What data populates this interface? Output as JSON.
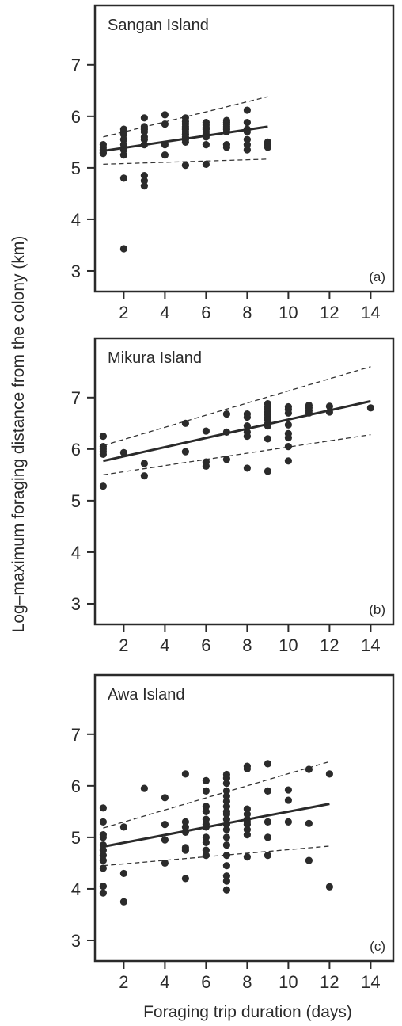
{
  "figure": {
    "ylabel": "Log–maximum foraging distance from the colony (km)",
    "xlabel": "Foraging trip duration (days)"
  },
  "chart_data": [
    {
      "type": "scatter",
      "title": "Sangan Island",
      "panel_label": "(a)",
      "xlim": [
        0.6,
        15.1
      ],
      "ylim": [
        2.6,
        8.15
      ],
      "xticks": [
        2,
        4,
        6,
        8,
        10,
        12,
        14
      ],
      "yticks": [
        3,
        4,
        5,
        6,
        7
      ],
      "points": [
        [
          1,
          5.45
        ],
        [
          1,
          5.4
        ],
        [
          1,
          5.35
        ],
        [
          1,
          5.3
        ],
        [
          1,
          5.28
        ],
        [
          2,
          5.75
        ],
        [
          2,
          5.7
        ],
        [
          2,
          5.65
        ],
        [
          2,
          5.55
        ],
        [
          2,
          5.45
        ],
        [
          2,
          5.35
        ],
        [
          2,
          5.25
        ],
        [
          2,
          4.8
        ],
        [
          2,
          3.43
        ],
        [
          3,
          5.97
        ],
        [
          3,
          5.8
        ],
        [
          3,
          5.75
        ],
        [
          3,
          5.7
        ],
        [
          3,
          5.6
        ],
        [
          3,
          5.55
        ],
        [
          3,
          5.45
        ],
        [
          3,
          4.85
        ],
        [
          3,
          4.75
        ],
        [
          3,
          4.65
        ],
        [
          4,
          6.03
        ],
        [
          4,
          5.85
        ],
        [
          4,
          5.45
        ],
        [
          4,
          5.25
        ],
        [
          5,
          5.97
        ],
        [
          5,
          5.9
        ],
        [
          5,
          5.85
        ],
        [
          5,
          5.8
        ],
        [
          5,
          5.75
        ],
        [
          5,
          5.7
        ],
        [
          5,
          5.65
        ],
        [
          5,
          5.6
        ],
        [
          5,
          5.55
        ],
        [
          5,
          5.5
        ],
        [
          5,
          5.05
        ],
        [
          6,
          5.88
        ],
        [
          6,
          5.83
        ],
        [
          6,
          5.78
        ],
        [
          6,
          5.75
        ],
        [
          6,
          5.7
        ],
        [
          6,
          5.65
        ],
        [
          6,
          5.6
        ],
        [
          6,
          5.45
        ],
        [
          6,
          5.07
        ],
        [
          7,
          5.92
        ],
        [
          7,
          5.88
        ],
        [
          7,
          5.84
        ],
        [
          7,
          5.8
        ],
        [
          7,
          5.75
        ],
        [
          7,
          5.7
        ],
        [
          7,
          5.45
        ],
        [
          7,
          5.4
        ],
        [
          8,
          6.12
        ],
        [
          8,
          5.88
        ],
        [
          8,
          5.75
        ],
        [
          8,
          5.7
        ],
        [
          8,
          5.55
        ],
        [
          8,
          5.45
        ],
        [
          8,
          5.35
        ],
        [
          9,
          5.5
        ],
        [
          9,
          5.45
        ],
        [
          9,
          5.4
        ]
      ],
      "fit_line": {
        "x": [
          1,
          9
        ],
        "y": [
          5.33,
          5.8
        ]
      },
      "confidence_upper": {
        "x": [
          1,
          9
        ],
        "y": [
          5.6,
          6.38
        ]
      },
      "confidence_lower": {
        "x": [
          1,
          9
        ],
        "y": [
          5.07,
          5.17
        ]
      }
    },
    {
      "type": "scatter",
      "title": "Mikura Island",
      "panel_label": "(b)",
      "xlim": [
        0.6,
        15.1
      ],
      "ylim": [
        2.6,
        8.15
      ],
      "xticks": [
        2,
        4,
        6,
        8,
        10,
        12,
        14
      ],
      "yticks": [
        3,
        4,
        5,
        6,
        7
      ],
      "points": [
        [
          1,
          6.25
        ],
        [
          1,
          6.05
        ],
        [
          1,
          6.0
        ],
        [
          1,
          5.95
        ],
        [
          1,
          5.9
        ],
        [
          1,
          5.28
        ],
        [
          2,
          5.93
        ],
        [
          3,
          5.72
        ],
        [
          3,
          5.48
        ],
        [
          5,
          6.5
        ],
        [
          5,
          5.95
        ],
        [
          6,
          6.35
        ],
        [
          6,
          5.75
        ],
        [
          6,
          5.67
        ],
        [
          7,
          6.68
        ],
        [
          7,
          6.33
        ],
        [
          7,
          5.8
        ],
        [
          8,
          6.68
        ],
        [
          8,
          6.62
        ],
        [
          8,
          6.45
        ],
        [
          8,
          6.33
        ],
        [
          8,
          6.25
        ],
        [
          8,
          5.63
        ],
        [
          9,
          6.88
        ],
        [
          9,
          6.82
        ],
        [
          9,
          6.77
        ],
        [
          9,
          6.72
        ],
        [
          9,
          6.67
        ],
        [
          9,
          6.62
        ],
        [
          9,
          6.57
        ],
        [
          9,
          6.5
        ],
        [
          9,
          6.45
        ],
        [
          9,
          6.2
        ],
        [
          9,
          5.57
        ],
        [
          10,
          6.82
        ],
        [
          10,
          6.77
        ],
        [
          10,
          6.7
        ],
        [
          10,
          6.47
        ],
        [
          10,
          6.3
        ],
        [
          10,
          6.22
        ],
        [
          10,
          6.05
        ],
        [
          10,
          5.77
        ],
        [
          11,
          6.85
        ],
        [
          11,
          6.8
        ],
        [
          11,
          6.75
        ],
        [
          11,
          6.7
        ],
        [
          12,
          6.83
        ],
        [
          12,
          6.72
        ],
        [
          14,
          6.8
        ]
      ],
      "fit_line": {
        "x": [
          1,
          14
        ],
        "y": [
          5.77,
          6.93
        ]
      },
      "confidence_upper": {
        "x": [
          1,
          14
        ],
        "y": [
          6.07,
          7.6
        ]
      },
      "confidence_lower": {
        "x": [
          1,
          14
        ],
        "y": [
          5.5,
          6.28
        ]
      }
    },
    {
      "type": "scatter",
      "title": "Awa Island",
      "panel_label": "(c)",
      "xlim": [
        0.6,
        15.1
      ],
      "ylim": [
        2.6,
        8.15
      ],
      "xticks": [
        2,
        4,
        6,
        8,
        10,
        12,
        14
      ],
      "yticks": [
        3,
        4,
        5,
        6,
        7
      ],
      "points": [
        [
          1,
          5.57
        ],
        [
          1,
          5.3
        ],
        [
          1,
          5.05
        ],
        [
          1,
          5.0
        ],
        [
          1,
          4.85
        ],
        [
          1,
          4.75
        ],
        [
          1,
          4.65
        ],
        [
          1,
          4.55
        ],
        [
          1,
          4.4
        ],
        [
          1,
          4.05
        ],
        [
          1,
          3.92
        ],
        [
          2,
          5.2
        ],
        [
          2,
          4.3
        ],
        [
          2,
          3.75
        ],
        [
          3,
          5.95
        ],
        [
          4,
          5.77
        ],
        [
          4,
          5.25
        ],
        [
          4,
          4.95
        ],
        [
          4,
          4.5
        ],
        [
          5,
          6.23
        ],
        [
          5,
          5.3
        ],
        [
          5,
          5.2
        ],
        [
          5,
          5.1
        ],
        [
          5,
          4.8
        ],
        [
          5,
          4.75
        ],
        [
          5,
          4.2
        ],
        [
          6,
          6.1
        ],
        [
          6,
          5.9
        ],
        [
          6,
          5.6
        ],
        [
          6,
          5.5
        ],
        [
          6,
          5.35
        ],
        [
          6,
          5.25
        ],
        [
          6,
          5.2
        ],
        [
          6,
          5.0
        ],
        [
          6,
          4.9
        ],
        [
          6,
          4.75
        ],
        [
          6,
          4.65
        ],
        [
          7,
          6.22
        ],
        [
          7,
          6.15
        ],
        [
          7,
          6.05
        ],
        [
          7,
          5.9
        ],
        [
          7,
          5.8
        ],
        [
          7,
          5.7
        ],
        [
          7,
          5.6
        ],
        [
          7,
          5.5
        ],
        [
          7,
          5.45
        ],
        [
          7,
          5.35
        ],
        [
          7,
          5.25
        ],
        [
          7,
          5.15
        ],
        [
          7,
          5.0
        ],
        [
          7,
          4.85
        ],
        [
          7,
          4.65
        ],
        [
          7,
          4.45
        ],
        [
          7,
          4.25
        ],
        [
          7,
          4.15
        ],
        [
          7,
          3.98
        ],
        [
          8,
          6.38
        ],
        [
          8,
          6.33
        ],
        [
          8,
          5.55
        ],
        [
          8,
          5.45
        ],
        [
          8,
          5.35
        ],
        [
          8,
          5.3
        ],
        [
          8,
          5.25
        ],
        [
          8,
          5.15
        ],
        [
          8,
          5.05
        ],
        [
          8,
          4.62
        ],
        [
          9,
          6.43
        ],
        [
          9,
          5.9
        ],
        [
          9,
          5.3
        ],
        [
          9,
          5.0
        ],
        [
          9,
          4.65
        ],
        [
          10,
          5.92
        ],
        [
          10,
          5.72
        ],
        [
          10,
          5.3
        ],
        [
          11,
          6.32
        ],
        [
          11,
          5.27
        ],
        [
          11,
          4.55
        ],
        [
          12,
          6.23
        ],
        [
          12,
          4.04
        ]
      ],
      "fit_line": {
        "x": [
          1,
          12
        ],
        "y": [
          4.82,
          5.65
        ]
      },
      "confidence_upper": {
        "x": [
          1,
          12
        ],
        "y": [
          5.18,
          6.47
        ]
      },
      "confidence_lower": {
        "x": [
          1,
          12
        ],
        "y": [
          4.45,
          4.83
        ]
      }
    }
  ]
}
